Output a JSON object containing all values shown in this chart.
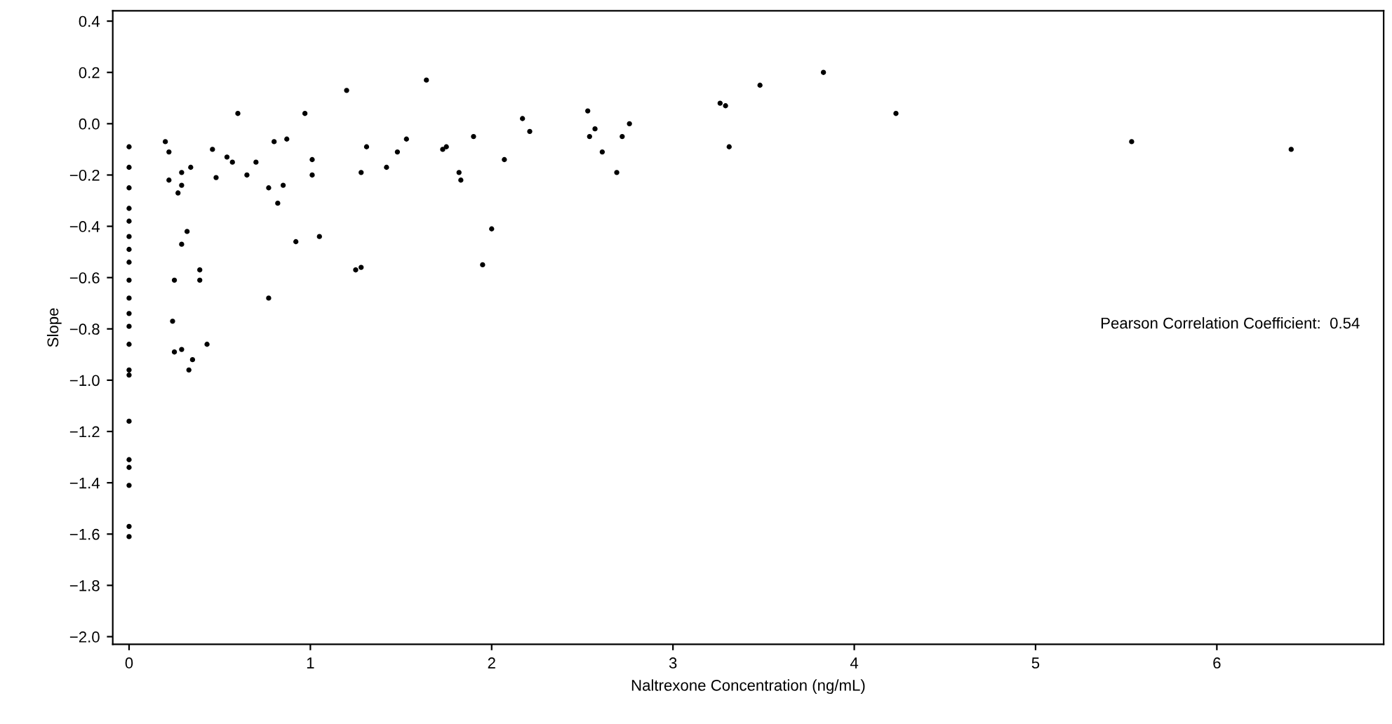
{
  "chart_data": {
    "type": "scatter",
    "xlabel": "Naltrexone Concentration (ng/mL)",
    "ylabel": "Slope",
    "annotations": [
      "Pearson Correlation Coefficient:  0.54"
    ],
    "xlim": [
      -0.09,
      6.92
    ],
    "ylim": [
      -2.03,
      0.44
    ],
    "xticks": [
      0,
      1,
      2,
      3,
      4,
      5,
      6
    ],
    "yticks": [
      {
        "value": -2.0,
        "label": "−2.0"
      },
      {
        "value": -1.8,
        "label": "−1.8"
      },
      {
        "value": -1.6,
        "label": "−1.6"
      },
      {
        "value": -1.4,
        "label": "−1.4"
      },
      {
        "value": -1.2,
        "label": "−1.2"
      },
      {
        "value": -1.0,
        "label": "−1.0"
      },
      {
        "value": -0.8,
        "label": "−0.8"
      },
      {
        "value": -0.6,
        "label": "−0.6"
      },
      {
        "value": -0.4,
        "label": "−0.4"
      },
      {
        "value": -0.2,
        "label": "−0.2"
      },
      {
        "value": 0.0,
        "label": "0.0"
      },
      {
        "value": 0.2,
        "label": "0.2"
      },
      {
        "value": 0.4,
        "label": "0.4"
      }
    ],
    "grid": false,
    "marker": "circle",
    "series": [
      {
        "color": "#000000",
        "x": [
          0,
          0,
          0,
          0,
          0,
          0,
          0,
          0,
          0,
          0,
          0,
          0,
          0,
          0,
          0,
          0,
          0,
          0,
          0,
          0,
          0,
          0.2,
          0.22,
          0.22,
          0.24,
          0.25,
          0.25,
          0.27,
          0.29,
          0.29,
          0.29,
          0.29,
          0.32,
          0.33,
          0.34,
          0.35,
          0.39,
          0.39,
          0.43,
          0.46,
          0.48,
          0.54,
          0.57,
          0.6,
          0.65,
          0.7,
          0.77,
          0.77,
          0.8,
          0.82,
          0.85,
          0.87,
          0.92,
          0.97,
          1.01,
          1.01,
          1.05,
          1.2,
          1.25,
          1.28,
          1.28,
          1.31,
          1.42,
          1.48,
          1.53,
          1.64,
          1.73,
          1.75,
          1.82,
          1.83,
          1.9,
          1.95,
          2.0,
          2.07,
          2.17,
          2.21,
          2.53,
          2.54,
          2.57,
          2.61,
          2.69,
          2.72,
          2.76,
          3.26,
          3.29,
          3.31,
          3.48,
          3.83,
          4.23,
          5.53,
          6.41
        ],
        "values": [
          -0.09,
          -0.17,
          -0.25,
          -0.33,
          -0.38,
          -0.44,
          -0.49,
          -0.54,
          -0.61,
          -0.68,
          -0.74,
          -0.79,
          -0.86,
          -0.96,
          -0.98,
          -1.16,
          -1.31,
          -1.34,
          -1.41,
          -1.57,
          -1.61,
          -0.07,
          -0.11,
          -0.22,
          -0.77,
          -0.61,
          -0.89,
          -0.27,
          -0.19,
          -0.24,
          -0.47,
          -0.88,
          -0.42,
          -0.96,
          -0.17,
          -0.92,
          -0.57,
          -0.61,
          -0.86,
          -0.1,
          -0.21,
          -0.13,
          -0.15,
          0.04,
          -0.2,
          -0.15,
          -0.25,
          -0.68,
          -0.07,
          -0.31,
          -0.24,
          -0.06,
          -0.46,
          0.04,
          -0.14,
          -0.2,
          -0.44,
          0.13,
          -0.57,
          -0.56,
          -0.19,
          -0.09,
          -0.17,
          -0.11,
          -0.06,
          0.17,
          -0.1,
          -0.09,
          -0.19,
          -0.22,
          -0.05,
          -0.55,
          -0.41,
          -0.14,
          0.02,
          -0.03,
          0.05,
          -0.05,
          -0.02,
          -0.11,
          -0.19,
          -0.05,
          0.0,
          0.08,
          0.07,
          -0.09,
          0.15,
          0.2,
          0.04,
          -0.07,
          -0.1
        ]
      }
    ]
  }
}
